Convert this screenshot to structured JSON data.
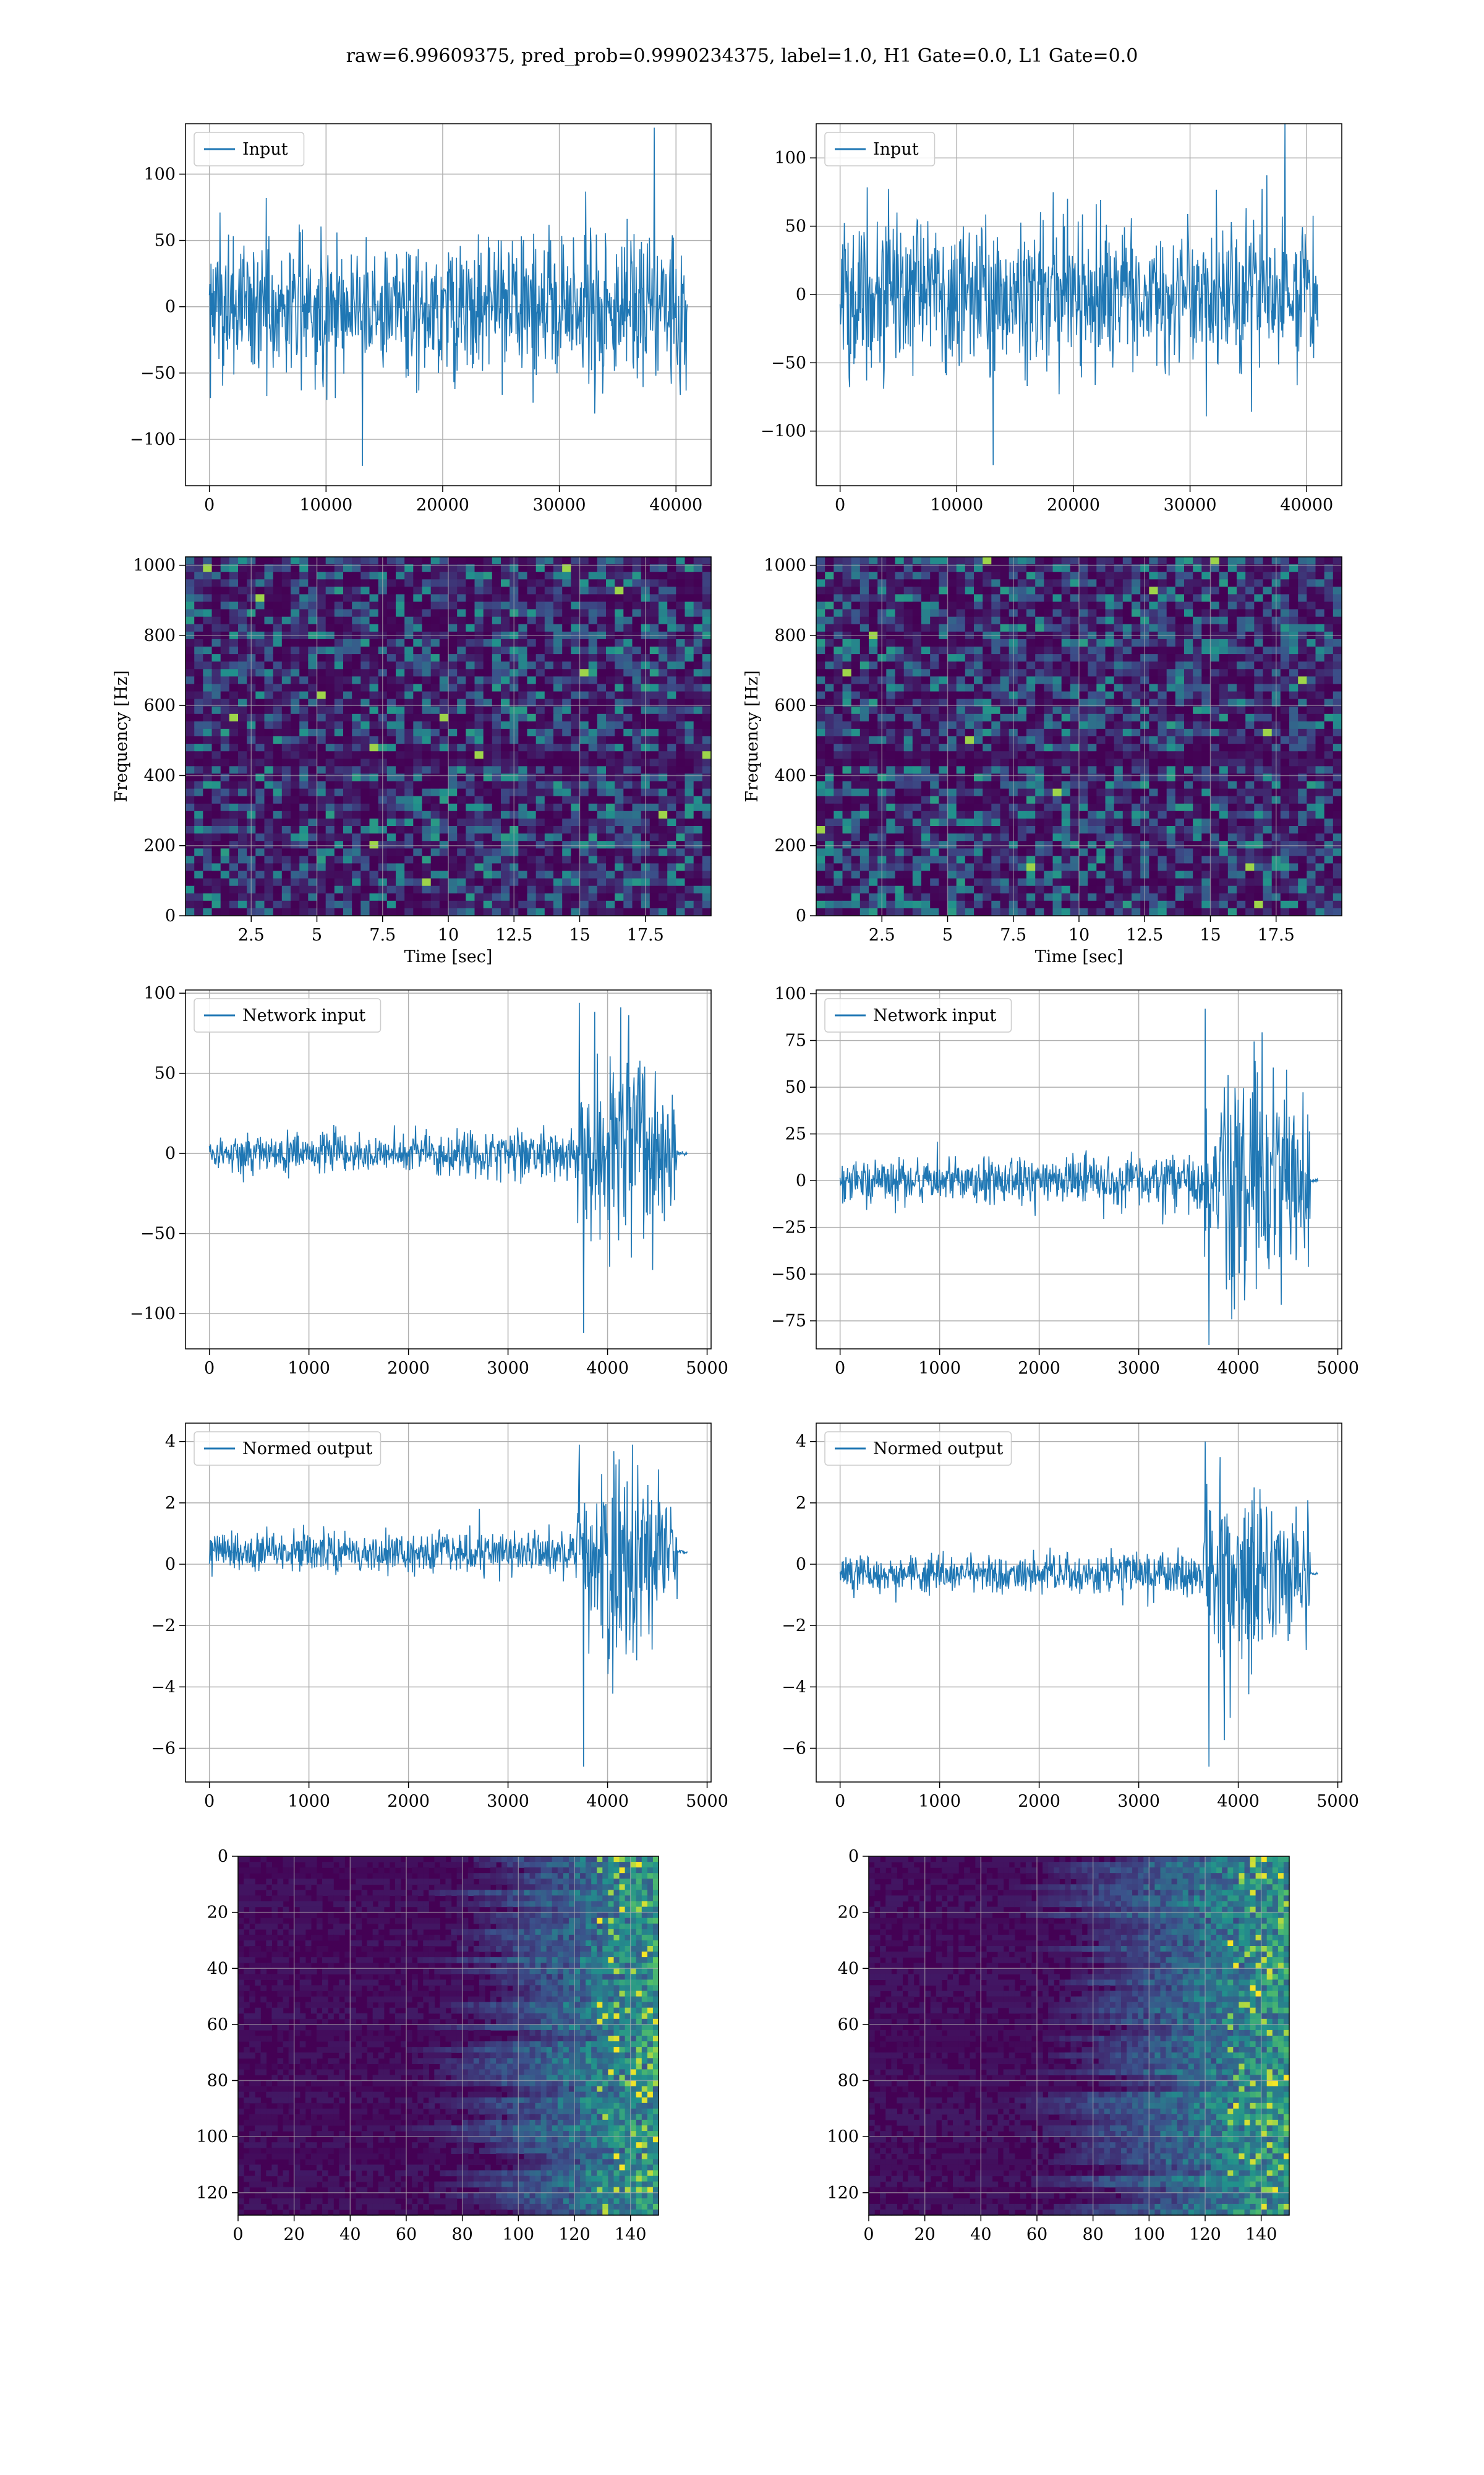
{
  "figure": {
    "title": "raw=6.99609375, pred_prob=0.9990234375, label=1.0, H1 Gate=0.0, L1 Gate=0.0"
  },
  "colors": {
    "line": "#1f77b4",
    "grid": "#b0b0b0",
    "axes": "#000000",
    "background": "#ffffff",
    "viridis_low": "#440154",
    "viridis_mid": "#21918c",
    "viridis_high": "#fde725"
  },
  "chart_data": [
    {
      "type": "line",
      "name": "h1-input",
      "legend": "Input",
      "legend_position": "upper-left",
      "grid": true,
      "xlim": [
        -2048,
        43008
      ],
      "ylim": [
        -135,
        138
      ],
      "xticks": [
        0,
        10000,
        20000,
        30000,
        40000
      ],
      "yticks": [
        -100,
        -50,
        0,
        50,
        100
      ],
      "xlabel": "",
      "ylabel": "",
      "signal": {
        "length": 40960,
        "noise_amplitude": 85,
        "spikes": [
          135,
          -120
        ],
        "taper": false
      }
    },
    {
      "type": "line",
      "name": "l1-input",
      "legend": "Input",
      "legend_position": "upper-left",
      "grid": true,
      "xlim": [
        -2048,
        43008
      ],
      "ylim": [
        -140,
        125
      ],
      "xticks": [
        0,
        10000,
        20000,
        30000,
        40000
      ],
      "yticks": [
        -100,
        -50,
        0,
        50,
        100
      ],
      "xlabel": "",
      "ylabel": "",
      "signal": {
        "length": 40960,
        "noise_amplitude": 85,
        "spikes": [
          125,
          -125
        ],
        "taper": false
      }
    },
    {
      "type": "heatmap",
      "name": "h1-spectrogram",
      "grid": true,
      "xlim": [
        0,
        20
      ],
      "ylim": [
        0,
        1024
      ],
      "xticks": [
        2.5,
        5.0,
        7.5,
        10.0,
        12.5,
        15.0,
        17.5
      ],
      "yticks": [
        0,
        200,
        400,
        600,
        800,
        1000
      ],
      "xlabel": "Time [sec]",
      "ylabel": "Frequency [Hz]",
      "y_inverted": false,
      "style": "noise-spectrogram"
    },
    {
      "type": "heatmap",
      "name": "l1-spectrogram",
      "grid": true,
      "xlim": [
        0,
        20
      ],
      "ylim": [
        0,
        1024
      ],
      "xticks": [
        2.5,
        5.0,
        7.5,
        10.0,
        12.5,
        15.0,
        17.5
      ],
      "yticks": [
        0,
        200,
        400,
        600,
        800,
        1000
      ],
      "xlabel": "Time [sec]",
      "ylabel": "Frequency [Hz]",
      "y_inverted": false,
      "style": "noise-spectrogram"
    },
    {
      "type": "line",
      "name": "h1-network-input",
      "legend": "Network input",
      "legend_position": "upper-left",
      "grid": true,
      "xlim": [
        -240,
        5040
      ],
      "ylim": [
        -122,
        102
      ],
      "xticks": [
        0,
        1000,
        2000,
        3000,
        4000,
        5000
      ],
      "yticks": [
        -100,
        -50,
        0,
        50,
        100
      ],
      "xlabel": "",
      "ylabel": "",
      "signal": {
        "length": 4800,
        "burst_start": 3700,
        "burst_end": 4700,
        "flat_end": 4800,
        "base_amplitude": 15,
        "burst_amplitude": 85,
        "offset": 0,
        "min": -112,
        "max": 94
      }
    },
    {
      "type": "line",
      "name": "l1-network-input",
      "legend": "Network input",
      "legend_position": "upper-left",
      "grid": true,
      "xlim": [
        -240,
        5040
      ],
      "ylim": [
        -90,
        102
      ],
      "xticks": [
        0,
        1000,
        2000,
        3000,
        4000,
        5000
      ],
      "yticks": [
        -75,
        -50,
        -25,
        0,
        25,
        50,
        75,
        100
      ],
      "xlabel": "",
      "ylabel": "",
      "signal": {
        "length": 4750,
        "burst_start": 3650,
        "burst_end": 4720,
        "flat_end": 4800,
        "base_amplitude": 14,
        "burst_amplitude": 78,
        "offset": 0,
        "min": -88,
        "max": 92
      }
    },
    {
      "type": "line",
      "name": "h1-normed-output",
      "legend": "Normed output",
      "legend_position": "upper-left",
      "grid": true,
      "xlim": [
        -240,
        5040
      ],
      "ylim": [
        -7.1,
        4.6
      ],
      "xticks": [
        0,
        1000,
        2000,
        3000,
        4000,
        5000
      ],
      "yticks": [
        -6,
        -4,
        -2,
        0,
        2,
        4
      ],
      "xlabel": "",
      "ylabel": "",
      "signal": {
        "length": 4800,
        "burst_start": 3700,
        "burst_end": 4700,
        "flat_end": 4800,
        "base_amplitude": 0.75,
        "burst_amplitude": 4.2,
        "offset": 0.4,
        "min": -6.6,
        "max": 3.9
      }
    },
    {
      "type": "line",
      "name": "l1-normed-output",
      "legend": "Normed output",
      "legend_position": "upper-left",
      "grid": true,
      "xlim": [
        -240,
        5040
      ],
      "ylim": [
        -7.1,
        4.6
      ],
      "xticks": [
        0,
        1000,
        2000,
        3000,
        4000,
        5000
      ],
      "yticks": [
        -6,
        -4,
        -2,
        0,
        2,
        4
      ],
      "xlabel": "",
      "ylabel": "",
      "signal": {
        "length": 4750,
        "burst_start": 3650,
        "burst_end": 4720,
        "flat_end": 4800,
        "base_amplitude": 0.7,
        "burst_amplitude": 4.0,
        "offset": -0.3,
        "min": -6.6,
        "max": 4.0
      }
    },
    {
      "type": "heatmap",
      "name": "h1-feature-map",
      "grid": true,
      "xlim": [
        0,
        150
      ],
      "ylim": [
        128,
        0
      ],
      "xticks": [
        0,
        20,
        40,
        60,
        80,
        100,
        120,
        140
      ],
      "yticks": [
        0,
        20,
        40,
        60,
        80,
        100,
        120
      ],
      "xlabel": "",
      "ylabel": "",
      "y_inverted": true,
      "style": "feature-map",
      "rows": 128,
      "cols": 150,
      "active_from_col": 95
    },
    {
      "type": "heatmap",
      "name": "l1-feature-map",
      "grid": true,
      "xlim": [
        0,
        150
      ],
      "ylim": [
        128,
        0
      ],
      "xticks": [
        0,
        20,
        40,
        60,
        80,
        100,
        120,
        140
      ],
      "yticks": [
        0,
        20,
        40,
        60,
        80,
        100,
        120
      ],
      "xlabel": "",
      "ylabel": "",
      "y_inverted": true,
      "style": "feature-map",
      "rows": 128,
      "cols": 150,
      "active_from_col": 85
    }
  ]
}
